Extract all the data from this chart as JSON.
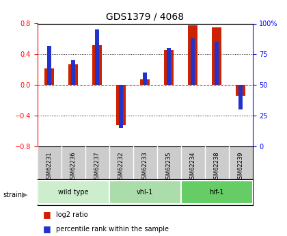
{
  "title": "GDS1379 / 4068",
  "samples": [
    "GSM62231",
    "GSM62236",
    "GSM62237",
    "GSM62232",
    "GSM62233",
    "GSM62235",
    "GSM62234",
    "GSM62238",
    "GSM62239"
  ],
  "log2_ratio": [
    0.22,
    0.27,
    0.52,
    -0.52,
    0.07,
    0.46,
    0.78,
    0.75,
    -0.14
  ],
  "percentile": [
    82,
    70,
    95,
    15,
    60,
    80,
    88,
    85,
    30
  ],
  "groups": [
    {
      "label": "wild type",
      "indices": [
        0,
        1,
        2
      ],
      "color": "#cceecc"
    },
    {
      "label": "vhl-1",
      "indices": [
        3,
        4,
        5
      ],
      "color": "#aaddaa"
    },
    {
      "label": "hif-1",
      "indices": [
        6,
        7,
        8
      ],
      "color": "#66cc66"
    }
  ],
  "ylim_left": [
    -0.8,
    0.8
  ],
  "ylim_right": [
    0,
    100
  ],
  "bar_color_red": "#cc2200",
  "bar_color_blue": "#2233cc",
  "background_color": "#ffffff",
  "plot_bg": "#ffffff",
  "grid_color": "#000000",
  "zero_line_color": "#cc0000",
  "bar_width": 0.35,
  "left_yticks": [
    -0.8,
    -0.4,
    0.0,
    0.4,
    0.8
  ],
  "right_yticks": [
    0,
    25,
    50,
    75,
    100
  ]
}
